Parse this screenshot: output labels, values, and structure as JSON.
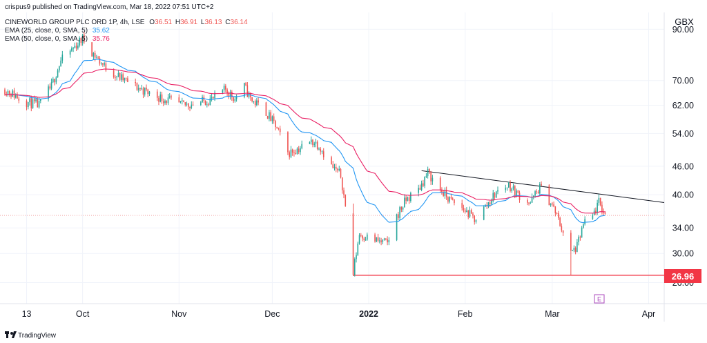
{
  "header": {
    "published": "crispus9 published on TradingView.com, Mar 18, 2022 07:51 UTC+2",
    "currency": "GBX"
  },
  "legend": {
    "symbol_line": "CINEWORLD GROUP PLC ORD 1P, 4h, LSE",
    "ohlc": [
      {
        "key": "O",
        "value": "36.51"
      },
      {
        "key": "H",
        "value": "36.91"
      },
      {
        "key": "L",
        "value": "36.13"
      },
      {
        "key": "C",
        "value": "36.14"
      }
    ],
    "ema25": {
      "label": "EMA (25, close, 0, SMA, 5)",
      "value": "35.62"
    },
    "ema50": {
      "label": "EMA (50, close, 0, SMA, 5)",
      "value": "35.76"
    }
  },
  "footer": {
    "brand": "TradingView",
    "earnings_marker": "E"
  },
  "colors": {
    "up": "#26a69a",
    "down": "#ef5350",
    "ema25": "#2196f3",
    "ema50": "#e91e63",
    "support": "#f23645",
    "trendline": "#131722",
    "price_line": "#f4a7a7",
    "text": "#131722"
  },
  "chart_data": {
    "type": "candlestick",
    "title": "CINEWORLD GROUP PLC ORD 1P, 4h, LSE",
    "scale": "log",
    "ylim": [
      24,
      92
    ],
    "y_ticks": [
      "90.00",
      "70.00",
      "62.00",
      "54.00",
      "46.00",
      "40.00",
      "34.00",
      "30.00",
      "26.00"
    ],
    "y_tick_values": [
      90,
      70,
      62,
      54,
      46,
      40,
      34,
      30,
      26
    ],
    "x_ticks": [
      "13",
      "Oct",
      "Nov",
      "Dec",
      "2022",
      "Feb",
      "Mar",
      "Apr"
    ],
    "x_tick_dates": [
      "2021-09-13",
      "2021-10-01",
      "2021-11-01",
      "2021-12-01",
      "2022-01-01",
      "2022-02-01",
      "2022-03-01",
      "2022-04-01"
    ],
    "x_range": [
      "2021-09-06",
      "2022-04-06"
    ],
    "current_price": 36.14,
    "support_level": {
      "value": 26.96,
      "label": "26.96",
      "from": "2021-12-27"
    },
    "resistance_trendline": {
      "points": [
        {
          "x": "2022-01-18",
          "y": 45.0
        },
        {
          "x": "2022-04-06",
          "y": 38.5
        }
      ]
    },
    "earnings_date": "2022-03-17",
    "ema25_last": 35.62,
    "ema50_last": 35.76,
    "path": [
      {
        "date": "2021-09-06",
        "close": 67.0
      },
      {
        "date": "2021-09-13",
        "close": 63.0
      },
      {
        "date": "2021-09-17",
        "close": 62.0
      },
      {
        "date": "2021-09-21",
        "close": 68.0
      },
      {
        "date": "2021-09-24",
        "close": 77.0
      },
      {
        "date": "2021-09-28",
        "close": 82.0
      },
      {
        "date": "2021-10-01",
        "close": 86.0
      },
      {
        "date": "2021-10-05",
        "close": 79.0
      },
      {
        "date": "2021-10-08",
        "close": 75.0
      },
      {
        "date": "2021-10-13",
        "close": 71.0
      },
      {
        "date": "2021-10-18",
        "close": 68.0
      },
      {
        "date": "2021-10-22",
        "close": 66.0
      },
      {
        "date": "2021-10-27",
        "close": 64.0
      },
      {
        "date": "2021-11-02",
        "close": 62.0
      },
      {
        "date": "2021-11-08",
        "close": 63.0
      },
      {
        "date": "2021-11-12",
        "close": 64.0
      },
      {
        "date": "2021-11-16",
        "close": 67.0
      },
      {
        "date": "2021-11-19",
        "close": 64.0
      },
      {
        "date": "2021-11-22",
        "close": 68.0
      },
      {
        "date": "2021-11-24",
        "close": 64.0
      },
      {
        "date": "2021-11-29",
        "close": 60.0
      },
      {
        "date": "2021-12-02",
        "close": 56.0
      },
      {
        "date": "2021-12-06",
        "close": 49.0
      },
      {
        "date": "2021-12-09",
        "close": 50.0
      },
      {
        "date": "2021-12-14",
        "close": 52.0
      },
      {
        "date": "2021-12-16",
        "close": 51.0
      },
      {
        "date": "2021-12-20",
        "close": 46.0
      },
      {
        "date": "2021-12-23",
        "close": 44.0
      },
      {
        "date": "2021-12-27",
        "close": 27.2
      },
      {
        "date": "2021-12-29",
        "close": 33.0
      },
      {
        "date": "2022-01-03",
        "close": 32.0
      },
      {
        "date": "2022-01-07",
        "close": 31.5
      },
      {
        "date": "2022-01-10",
        "close": 36.0
      },
      {
        "date": "2022-01-13",
        "close": 39.0
      },
      {
        "date": "2022-01-17",
        "close": 41.0
      },
      {
        "date": "2022-01-20",
        "close": 44.5
      },
      {
        "date": "2022-01-24",
        "close": 41.0
      },
      {
        "date": "2022-01-27",
        "close": 39.0
      },
      {
        "date": "2022-02-01",
        "close": 37.0
      },
      {
        "date": "2022-02-04",
        "close": 35.5
      },
      {
        "date": "2022-02-08",
        "close": 38.0
      },
      {
        "date": "2022-02-11",
        "close": 40.5
      },
      {
        "date": "2022-02-15",
        "close": 42.0
      },
      {
        "date": "2022-02-18",
        "close": 40.0
      },
      {
        "date": "2022-02-22",
        "close": 38.5
      },
      {
        "date": "2022-02-25",
        "close": 41.5
      },
      {
        "date": "2022-03-01",
        "close": 38.0
      },
      {
        "date": "2022-03-04",
        "close": 34.0
      },
      {
        "date": "2022-03-07",
        "close": 30.0
      },
      {
        "date": "2022-03-09",
        "close": 31.0
      },
      {
        "date": "2022-03-11",
        "close": 34.5
      },
      {
        "date": "2022-03-14",
        "close": 36.0
      },
      {
        "date": "2022-03-16",
        "close": 38.5
      },
      {
        "date": "2022-03-18",
        "close": 36.14
      }
    ]
  }
}
